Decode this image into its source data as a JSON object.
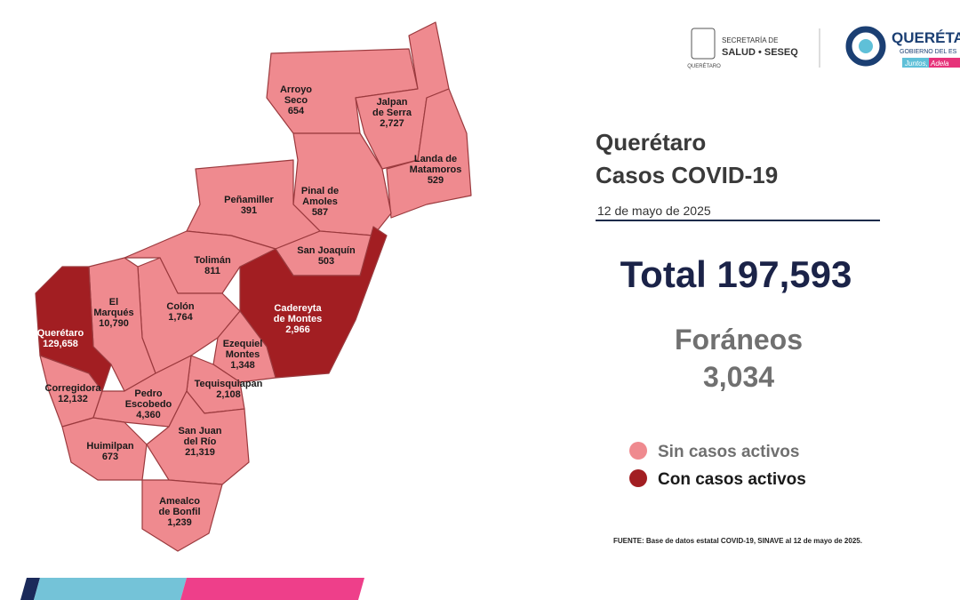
{
  "header": {
    "secretaria": [
      "SECRETARÍA DE",
      "SALUD • SESEQ"
    ],
    "gov": "QUERÉTARO",
    "brand": "QUERÉTA",
    "brand_sub": "GOBIERNO DEL ES",
    "slogan": [
      "Juntos,",
      "Adela"
    ]
  },
  "title": [
    "Querétaro",
    "Casos COVID-19"
  ],
  "date": "12 de mayo de 2025",
  "total": "Total 197,593",
  "foraneos": [
    "Foráneos",
    "3,034"
  ],
  "legend": [
    {
      "label": "Sin casos activos",
      "color": "#ef8a8f"
    },
    {
      "label": "Con casos activos",
      "color": "#a21e22"
    }
  ],
  "source": "FUENTE: Base de datos estatal  COVID-19,  SINAVE  al 12 de mayo de 2025.",
  "municipalities": [
    {
      "name": [
        "Arroyo",
        "Seco"
      ],
      "cases": "654",
      "color": "#ef8a8f"
    },
    {
      "name": [
        "Jalpan",
        "de Serra"
      ],
      "cases": "2,727",
      "color": "#ef8a8f"
    },
    {
      "name": [
        "Landa de",
        "Matamoros"
      ],
      "cases": "529",
      "color": "#ef8a8f"
    },
    {
      "name": [
        "Pinal de",
        "Amoles"
      ],
      "cases": "587",
      "color": "#ef8a8f"
    },
    {
      "name": [
        "Peñamiller"
      ],
      "cases": "391",
      "color": "#ef8a8f"
    },
    {
      "name": [
        "San Joaquín"
      ],
      "cases": "503",
      "color": "#ef8a8f"
    },
    {
      "name": [
        "Cadereyta",
        "de Montes"
      ],
      "cases": "2,966",
      "color": "#a21e22"
    },
    {
      "name": [
        "Tolimán"
      ],
      "cases": "811",
      "color": "#ef8a8f"
    },
    {
      "name": [
        "Colón"
      ],
      "cases": "1,764",
      "color": "#ef8a8f"
    },
    {
      "name": [
        "El",
        "Marqués"
      ],
      "cases": "10,790",
      "color": "#ef8a8f"
    },
    {
      "name": [
        "Querétaro"
      ],
      "cases": "129,658",
      "color": "#a21e22"
    },
    {
      "name": [
        "Ezequiel",
        "Montes"
      ],
      "cases": "1,348",
      "color": "#ef8a8f"
    },
    {
      "name": [
        "Corregidora"
      ],
      "cases": "12,132",
      "color": "#ef8a8f"
    },
    {
      "name": [
        "Tequisquiapan"
      ],
      "cases": "2,108",
      "color": "#ef8a8f"
    },
    {
      "name": [
        "Pedro",
        "Escobedo"
      ],
      "cases": "4,360",
      "color": "#ef8a8f"
    },
    {
      "name": [
        "San Juan",
        "del Río"
      ],
      "cases": "21,319",
      "color": "#ef8a8f"
    },
    {
      "name": [
        "Huimilpan"
      ],
      "cases": "673",
      "color": "#ef8a8f"
    },
    {
      "name": [
        "Amealco",
        "de Bonfil"
      ],
      "cases": "1,239",
      "color": "#ef8a8f"
    }
  ]
}
